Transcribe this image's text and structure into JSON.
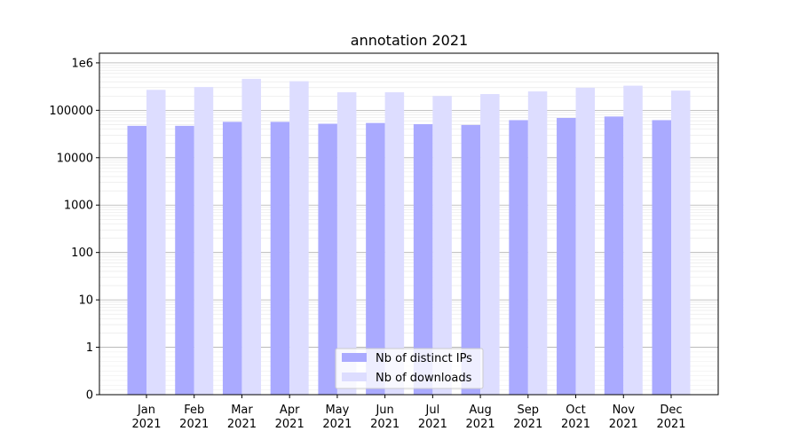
{
  "chart_data": {
    "type": "bar",
    "title": "annotation 2021",
    "xlabel": "",
    "ylabel": "",
    "yscale": "symlog",
    "ylim": [
      0,
      1600000
    ],
    "yticks": [
      0,
      1,
      10,
      100,
      1000,
      10000,
      100000,
      1000000
    ],
    "ytick_labels": [
      "0",
      "1",
      "10",
      "100",
      "1000",
      "10000",
      "100000",
      "1e6"
    ],
    "grid": true,
    "legend_position": "lower center",
    "categories": [
      "Jan\n2021",
      "Feb\n2021",
      "Mar\n2021",
      "Apr\n2021",
      "May\n2021",
      "Jun\n2021",
      "Jul\n2021",
      "Aug\n2021",
      "Sep\n2021",
      "Oct\n2021",
      "Nov\n2021",
      "Dec\n2021"
    ],
    "series": [
      {
        "name": "Nb of distinct IPs",
        "color": "#aaaaff",
        "values": [
          47000,
          47000,
          57000,
          57000,
          52000,
          54000,
          51000,
          49000,
          62000,
          69000,
          74000,
          62000
        ]
      },
      {
        "name": "Nb of downloads",
        "color": "#ddddff",
        "values": [
          270000,
          310000,
          460000,
          410000,
          240000,
          240000,
          200000,
          220000,
          250000,
          300000,
          330000,
          260000
        ]
      }
    ]
  }
}
